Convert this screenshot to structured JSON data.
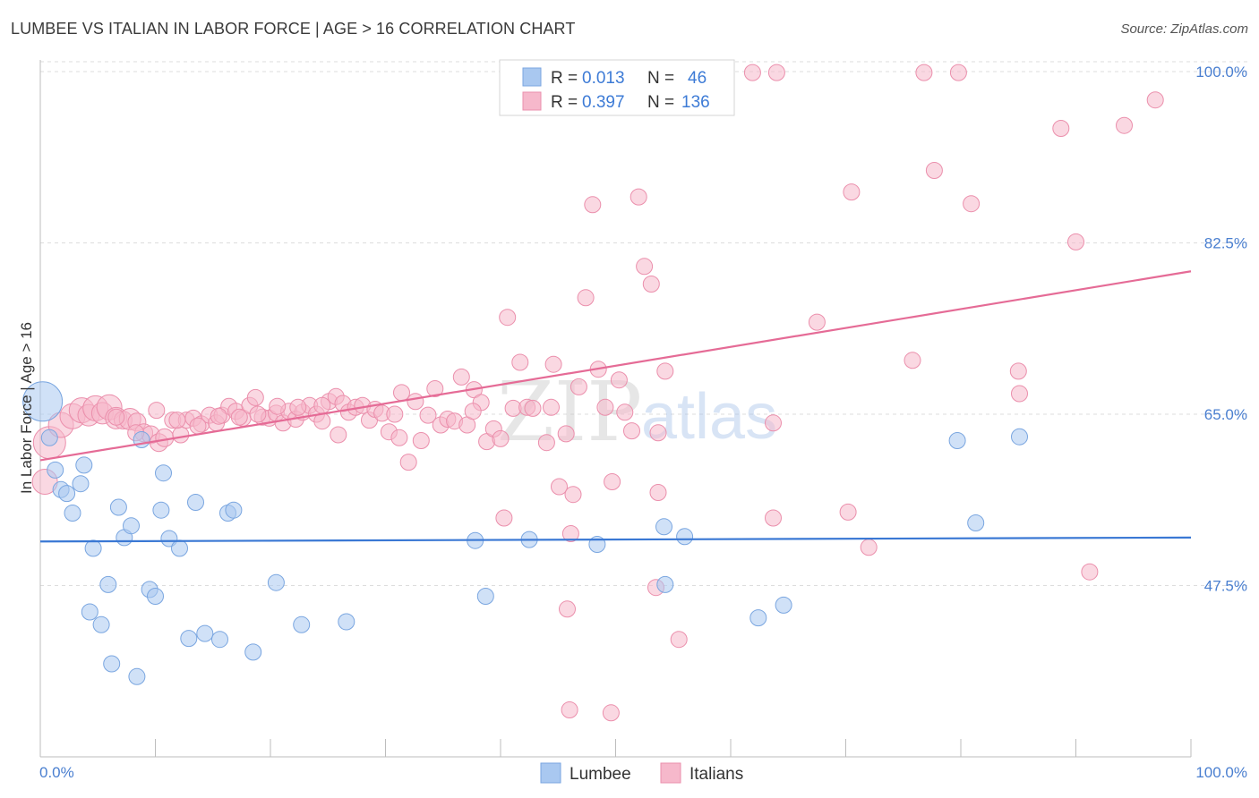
{
  "title": "LUMBEE VS ITALIAN IN LABOR FORCE | AGE > 16 CORRELATION CHART",
  "source": "Source: ZipAtlas.com",
  "watermark": {
    "zip": "ZIP",
    "atlas": "atlas"
  },
  "colors": {
    "lumbee_fill": "#a9c8f0",
    "lumbee_stroke": "#7aa6e0",
    "lumbee_line": "#3a78d4",
    "italians_fill": "#f6b8cb",
    "italians_stroke": "#eb8fac",
    "italians_line": "#e56b96",
    "grid": "#dddddd",
    "tick_text": "#4a7fd0"
  },
  "legend": {
    "r_label": "R =",
    "n_label": "N =",
    "rows": [
      {
        "series": "Lumbee",
        "r": "0.013",
        "n": "46"
      },
      {
        "series": "Italians",
        "r": "0.397",
        "n": "136"
      }
    ]
  },
  "bottom_legend": [
    "Lumbee",
    "Italians"
  ],
  "chart_data": {
    "type": "scatter",
    "title": "LUMBEE VS ITALIAN IN LABOR FORCE | AGE > 16 CORRELATION CHART",
    "xlabel": "",
    "ylabel": "In Labor Force | Age > 16",
    "xlim": [
      0,
      100
    ],
    "ylim": [
      30,
      101
    ],
    "x_tick_labels": [
      "0.0%",
      "100.0%"
    ],
    "y_ticks": [
      47.5,
      65.0,
      82.5,
      100.0
    ],
    "y_tick_labels": [
      "47.5%",
      "65.0%",
      "82.5%",
      "100.0%"
    ],
    "grid": true,
    "legend_position": "top-center",
    "series": [
      {
        "name": "Lumbee",
        "color": "#a9c8f0",
        "trend": {
          "x": [
            0,
            100
          ],
          "y": [
            52.0,
            52.4
          ]
        },
        "points": [
          [
            0.2,
            66.3,
            22
          ],
          [
            0.8,
            62.6,
            9
          ],
          [
            1.3,
            59.3,
            9
          ],
          [
            1.8,
            57.3,
            9
          ],
          [
            2.3,
            56.9,
            9
          ],
          [
            2.8,
            54.9,
            9
          ],
          [
            3.5,
            57.9,
            9
          ],
          [
            3.8,
            59.8,
            9
          ],
          [
            4.6,
            51.3,
            9
          ],
          [
            5.9,
            47.6,
            9
          ],
          [
            4.3,
            44.8,
            9
          ],
          [
            5.3,
            43.5,
            9
          ],
          [
            6.2,
            39.5,
            9
          ],
          [
            6.8,
            55.5,
            9
          ],
          [
            7.3,
            52.4,
            9
          ],
          [
            7.9,
            53.6,
            9
          ],
          [
            8.4,
            38.2,
            9
          ],
          [
            8.8,
            62.4,
            9
          ],
          [
            9.5,
            47.1,
            9
          ],
          [
            10.0,
            46.4,
            9
          ],
          [
            10.5,
            55.2,
            9
          ],
          [
            10.7,
            59.0,
            9
          ],
          [
            11.2,
            52.3,
            9
          ],
          [
            12.1,
            51.3,
            9
          ],
          [
            12.9,
            42.1,
            9
          ],
          [
            13.5,
            56.0,
            9
          ],
          [
            14.3,
            42.6,
            9
          ],
          [
            15.6,
            42.0,
            9
          ],
          [
            16.3,
            54.9,
            9
          ],
          [
            16.8,
            55.2,
            9
          ],
          [
            18.5,
            40.7,
            9
          ],
          [
            20.5,
            47.8,
            9
          ],
          [
            22.7,
            43.5,
            9
          ],
          [
            26.6,
            43.8,
            9
          ],
          [
            37.8,
            52.1,
            9
          ],
          [
            38.7,
            46.4,
            9
          ],
          [
            42.5,
            52.2,
            9
          ],
          [
            48.4,
            51.7,
            9
          ],
          [
            54.2,
            53.5,
            9
          ],
          [
            56.0,
            52.5,
            9
          ],
          [
            54.3,
            47.6,
            9
          ],
          [
            62.4,
            44.2,
            9
          ],
          [
            64.6,
            45.5,
            9
          ],
          [
            79.7,
            62.3,
            9
          ],
          [
            81.3,
            53.9,
            9
          ],
          [
            85.1,
            62.7,
            9
          ]
        ]
      },
      {
        "name": "Italians",
        "color": "#f6b8cb",
        "trend": {
          "x": [
            0,
            100
          ],
          "y": [
            60.3,
            79.6
          ]
        },
        "points": [
          [
            0.4,
            58.1,
            14
          ],
          [
            0.8,
            62.1,
            18
          ],
          [
            1.8,
            63.9,
            14
          ],
          [
            2.8,
            64.8,
            14
          ],
          [
            3.6,
            65.4,
            14
          ],
          [
            4.2,
            64.9,
            12
          ],
          [
            4.8,
            65.6,
            14
          ],
          [
            5.4,
            65.1,
            12
          ],
          [
            6.0,
            65.7,
            14
          ],
          [
            6.6,
            64.6,
            12
          ],
          [
            7.2,
            64.4,
            10
          ],
          [
            7.8,
            64.5,
            12
          ],
          [
            8.4,
            64.2,
            10
          ],
          [
            9.0,
            63.1,
            10
          ],
          [
            9.6,
            62.9,
            10
          ],
          [
            10.3,
            62.1,
            10
          ],
          [
            10.8,
            62.6,
            10
          ],
          [
            11.5,
            64.4,
            9
          ],
          [
            12.2,
            62.9,
            9
          ],
          [
            12.7,
            64.4,
            9
          ],
          [
            13.3,
            64.6,
            9
          ],
          [
            14.0,
            64.0,
            9
          ],
          [
            14.7,
            64.9,
            9
          ],
          [
            15.3,
            64.1,
            9
          ],
          [
            15.8,
            64.9,
            9
          ],
          [
            16.4,
            65.8,
            9
          ],
          [
            17.0,
            65.3,
            9
          ],
          [
            17.6,
            64.6,
            9
          ],
          [
            18.2,
            65.9,
            9
          ],
          [
            18.7,
            66.7,
            9
          ],
          [
            19.3,
            64.7,
            9
          ],
          [
            19.9,
            64.6,
            9
          ],
          [
            20.5,
            65.1,
            9
          ],
          [
            21.1,
            64.1,
            9
          ],
          [
            21.6,
            65.3,
            9
          ],
          [
            22.2,
            64.5,
            9
          ],
          [
            22.8,
            65.2,
            9
          ],
          [
            23.4,
            65.9,
            9
          ],
          [
            24.0,
            65.0,
            9
          ],
          [
            24.5,
            64.3,
            9
          ],
          [
            25.1,
            66.3,
            9
          ],
          [
            25.7,
            66.8,
            9
          ],
          [
            26.3,
            66.1,
            9
          ],
          [
            26.8,
            65.2,
            9
          ],
          [
            27.4,
            65.7,
            9
          ],
          [
            28.0,
            65.9,
            9
          ],
          [
            28.6,
            64.4,
            9
          ],
          [
            29.1,
            65.5,
            9
          ],
          [
            29.7,
            65.1,
            9
          ],
          [
            30.3,
            63.2,
            9
          ],
          [
            30.8,
            65.0,
            9
          ],
          [
            31.4,
            67.2,
            9
          ],
          [
            32.0,
            60.1,
            9
          ],
          [
            32.6,
            66.3,
            9
          ],
          [
            33.1,
            62.3,
            9
          ],
          [
            33.7,
            64.9,
            9
          ],
          [
            34.3,
            67.6,
            9
          ],
          [
            34.8,
            63.9,
            9
          ],
          [
            35.4,
            64.5,
            9
          ],
          [
            36.0,
            64.3,
            9
          ],
          [
            36.6,
            68.8,
            9
          ],
          [
            37.1,
            63.9,
            9
          ],
          [
            37.7,
            67.5,
            9
          ],
          [
            38.3,
            66.2,
            9
          ],
          [
            38.8,
            62.2,
            9
          ],
          [
            39.4,
            63.5,
            9
          ],
          [
            40.0,
            62.5,
            9
          ],
          [
            40.6,
            74.9,
            9
          ],
          [
            41.1,
            65.6,
            9
          ],
          [
            41.7,
            70.3,
            9
          ],
          [
            42.3,
            65.7,
            9
          ],
          [
            42.8,
            65.6,
            9
          ],
          [
            44.0,
            62.1,
            9
          ],
          [
            44.6,
            70.1,
            9
          ],
          [
            45.1,
            57.6,
            9
          ],
          [
            45.7,
            63.0,
            9
          ],
          [
            46.3,
            56.8,
            9
          ],
          [
            46.8,
            67.8,
            9
          ],
          [
            47.4,
            76.9,
            9
          ],
          [
            48.0,
            86.4,
            9
          ],
          [
            48.5,
            69.6,
            9
          ],
          [
            49.1,
            65.7,
            9
          ],
          [
            49.7,
            58.1,
            9
          ],
          [
            50.3,
            68.5,
            9
          ],
          [
            50.8,
            65.2,
            9
          ],
          [
            51.4,
            63.3,
            9
          ],
          [
            52.0,
            87.2,
            9
          ],
          [
            52.5,
            80.1,
            9
          ],
          [
            53.1,
            78.3,
            9
          ],
          [
            53.7,
            57.0,
            9
          ],
          [
            54.3,
            69.4,
            9
          ],
          [
            54.8,
            99.6,
            9
          ],
          [
            58.8,
            99.9,
            9
          ],
          [
            61.9,
            99.9,
            9
          ],
          [
            64.0,
            99.9,
            9
          ],
          [
            76.8,
            99.9,
            9
          ],
          [
            79.8,
            99.9,
            9
          ],
          [
            67.5,
            74.4,
            9
          ],
          [
            70.5,
            87.7,
            9
          ],
          [
            75.8,
            70.5,
            9
          ],
          [
            77.7,
            89.9,
            9
          ],
          [
            80.9,
            86.5,
            9
          ],
          [
            85.1,
            67.1,
            9
          ],
          [
            88.7,
            94.2,
            9
          ],
          [
            90.0,
            82.6,
            9
          ],
          [
            94.2,
            94.5,
            9
          ],
          [
            96.9,
            97.1,
            9
          ],
          [
            72.0,
            51.4,
            9
          ],
          [
            70.2,
            55.0,
            9
          ],
          [
            63.7,
            54.4,
            9
          ],
          [
            63.7,
            64.1,
            9
          ],
          [
            45.8,
            45.1,
            9
          ],
          [
            46.0,
            34.8,
            9
          ],
          [
            49.6,
            34.5,
            9
          ],
          [
            55.5,
            42.0,
            9
          ],
          [
            53.5,
            47.3,
            9
          ],
          [
            46.1,
            52.8,
            9
          ],
          [
            40.3,
            54.4,
            9
          ],
          [
            91.2,
            48.9,
            9
          ],
          [
            85.0,
            69.4,
            9
          ],
          [
            53.7,
            63.1,
            9
          ],
          [
            44.4,
            65.7,
            9
          ],
          [
            37.6,
            65.3,
            9
          ],
          [
            31.2,
            62.6,
            9
          ],
          [
            25.9,
            62.9,
            9
          ],
          [
            24.5,
            65.9,
            9
          ],
          [
            22.4,
            65.7,
            9
          ],
          [
            20.6,
            65.8,
            9
          ],
          [
            18.9,
            65.0,
            9
          ],
          [
            17.3,
            64.7,
            9
          ],
          [
            15.5,
            64.8,
            9
          ],
          [
            13.7,
            63.8,
            9
          ],
          [
            11.9,
            64.4,
            9
          ],
          [
            10.1,
            65.4,
            9
          ],
          [
            8.3,
            63.1,
            9
          ],
          [
            6.6,
            64.7,
            9
          ]
        ]
      }
    ]
  }
}
